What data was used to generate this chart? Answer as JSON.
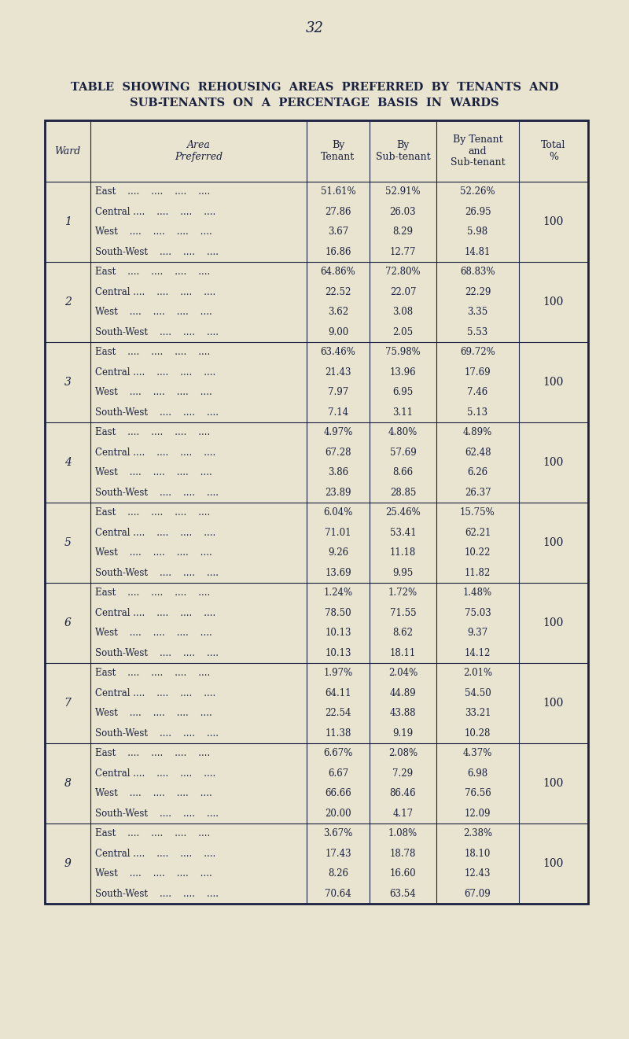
{
  "page_number": "32",
  "title_line1": "TABLE  SHOWING  REHOUSING  AREAS  PREFERRED  BY  TENANTS  AND",
  "title_line2": "SUB-TENANTS  ON  A  PERCENTAGE  BASIS  IN  WARDS",
  "background_color": "#e8e4d0",
  "text_color": "#1a2040",
  "border_color": "#1a2040",
  "wards": [
    {
      "ward": "1",
      "areas": [
        "East",
        "Central ....",
        "West ....",
        "South-West"
      ],
      "by_tenant": [
        "51.61%",
        "27.86",
        "3.67",
        "16.86"
      ],
      "by_subtenant": [
        "52.91%",
        "26.03",
        "8.29",
        "12.77"
      ],
      "by_both": [
        "52.26%",
        "26.95",
        "5.98",
        "14.81"
      ],
      "total": "100"
    },
    {
      "ward": "2",
      "areas": [
        "East",
        "Central ....",
        "West ....",
        "South-West"
      ],
      "by_tenant": [
        "64.86%",
        "22.52",
        "3.62",
        "9.00"
      ],
      "by_subtenant": [
        "72.80%",
        "22.07",
        "3.08",
        "2.05"
      ],
      "by_both": [
        "68.83%",
        "22.29",
        "3.35",
        "5.53"
      ],
      "total": "100"
    },
    {
      "ward": "3",
      "areas": [
        "East",
        "Central ....",
        "West ....",
        "South-West"
      ],
      "by_tenant": [
        "63.46%",
        "21.43",
        "7.97",
        "7.14"
      ],
      "by_subtenant": [
        "75.98%",
        "13.96",
        "6.95",
        "3.11"
      ],
      "by_both": [
        "69.72%",
        "17.69",
        "7.46",
        "5.13"
      ],
      "total": "100"
    },
    {
      "ward": "4",
      "areas": [
        "East",
        "Central ....",
        "West ....",
        "South-West"
      ],
      "by_tenant": [
        "4.97%",
        "67.28",
        "3.86",
        "23.89"
      ],
      "by_subtenant": [
        "4.80%",
        "57.69",
        "8.66",
        "28.85"
      ],
      "by_both": [
        "4.89%",
        "62.48",
        "6.26",
        "26.37"
      ],
      "total": "100"
    },
    {
      "ward": "5",
      "areas": [
        "East",
        "Central ....",
        "West ....",
        "South-West"
      ],
      "by_tenant": [
        "6.04%",
        "71.01",
        "9.26",
        "13.69"
      ],
      "by_subtenant": [
        "25.46%",
        "53.41",
        "11.18",
        "9.95"
      ],
      "by_both": [
        "15.75%",
        "62.21",
        "10.22",
        "11.82"
      ],
      "total": "100"
    },
    {
      "ward": "6",
      "areas": [
        "East",
        "Central ....",
        "West ....",
        "South-West"
      ],
      "by_tenant": [
        "1.24%",
        "78.50",
        "10.13",
        "10.13"
      ],
      "by_subtenant": [
        "1.72%",
        "71.55",
        "8.62",
        "18.11"
      ],
      "by_both": [
        "1.48%",
        "75.03",
        "9.37",
        "14.12"
      ],
      "total": "100"
    },
    {
      "ward": "7",
      "areas": [
        "East",
        "Central ....",
        "West ....",
        "South-West"
      ],
      "by_tenant": [
        "1.97%",
        "64.11",
        "22.54",
        "11.38"
      ],
      "by_subtenant": [
        "2.04%",
        "44.89",
        "43.88",
        "9.19"
      ],
      "by_both": [
        "2.01%",
        "54.50",
        "33.21",
        "10.28"
      ],
      "total": "100"
    },
    {
      "ward": "8",
      "areas": [
        "East",
        "Central ....",
        "West ....",
        "South-West"
      ],
      "by_tenant": [
        "6.67%",
        "6.67",
        "66.66",
        "20.00"
      ],
      "by_subtenant": [
        "2.08%",
        "7.29",
        "86.46",
        "4.17"
      ],
      "by_both": [
        "4.37%",
        "6.98",
        "76.56",
        "12.09"
      ],
      "total": "100"
    },
    {
      "ward": "9",
      "areas": [
        "East",
        "Central ....",
        "West ....",
        "South-West"
      ],
      "by_tenant": [
        "3.67%",
        "17.43",
        "8.26",
        "70.64"
      ],
      "by_subtenant": [
        "1.08%",
        "18.78",
        "16.60",
        "63.54"
      ],
      "by_both": [
        "2.38%",
        "18.10",
        "12.43",
        "67.09"
      ],
      "total": "100"
    }
  ],
  "figsize": [
    8.0,
    13.21
  ],
  "dpi": 100
}
